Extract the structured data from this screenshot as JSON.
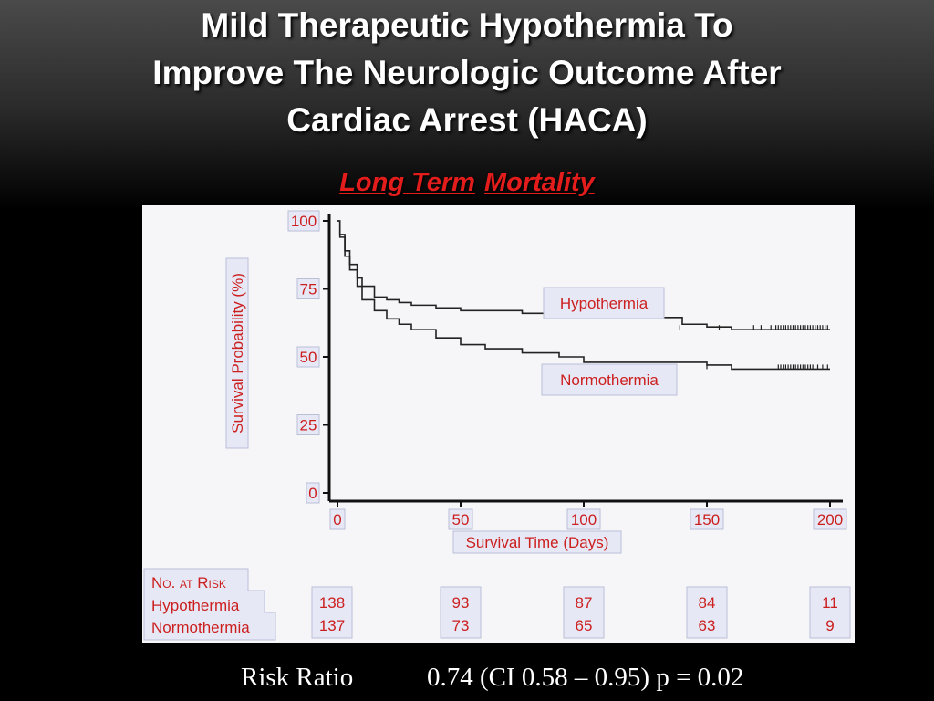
{
  "title_lines": [
    "Mild Therapeutic Hypothermia To",
    "Improve The Neurologic Outcome After",
    "Cardiac Arrest (HACA)"
  ],
  "subtitle_parts": [
    "Long Term",
    "Mortality"
  ],
  "colors": {
    "title": "#ffffff",
    "subtitle": "#e31c1c",
    "label_text": "#cc1f1f",
    "label_box_fill": "#e6e9f5",
    "curve": "#222222"
  },
  "chart_data": {
    "type": "line",
    "title": "",
    "xlabel": "Survival Time (Days)",
    "ylabel": "Survival Probability (%)",
    "xlim": [
      0,
      200
    ],
    "ylim": [
      0,
      100
    ],
    "x_ticks": [
      "0",
      "50",
      "100",
      "150",
      "200"
    ],
    "y_ticks": [
      "0",
      "25",
      "50",
      "75",
      "100"
    ],
    "series": [
      {
        "name": "Hypothermia",
        "x": [
          0,
          1,
          3,
          5,
          8,
          10,
          15,
          20,
          25,
          30,
          40,
          50,
          60,
          75,
          100,
          125,
          140,
          150,
          160,
          180,
          200
        ],
        "y": [
          100,
          95,
          89,
          84,
          79,
          76,
          72,
          71,
          70,
          69,
          68,
          67,
          67,
          66,
          64.5,
          64.5,
          62,
          61,
          60,
          60,
          60
        ],
        "censor_x": [
          139,
          155,
          169,
          172,
          176,
          178,
          179,
          180,
          181,
          182,
          183,
          184,
          185,
          186,
          187,
          188,
          189,
          190,
          191,
          192,
          193,
          194,
          195,
          196,
          197,
          198,
          199
        ],
        "censor_y": 60
      },
      {
        "name": "Normothermia",
        "x": [
          0,
          1,
          3,
          5,
          8,
          10,
          15,
          20,
          25,
          30,
          40,
          50,
          60,
          75,
          90,
          100,
          125,
          150,
          160,
          180,
          200
        ],
        "y": [
          100,
          94,
          87,
          82,
          76,
          71,
          67,
          64,
          62,
          60,
          57,
          54.5,
          53,
          51.5,
          50,
          48,
          48,
          47,
          45.5,
          45.5,
          45.5
        ],
        "censor_x": [
          150,
          179,
          180,
          181,
          182,
          183,
          184,
          185,
          186,
          187,
          188,
          189,
          190,
          191,
          192,
          193,
          195,
          197,
          199
        ],
        "censor_y": 45.5
      }
    ],
    "annotations": [
      "Hypothermia",
      "Normothermia"
    ],
    "risk_table": {
      "header": "No. at Risk",
      "rows": [
        "Hypothermia",
        "Normothermia"
      ],
      "columns": [
        {
          "day": 0,
          "hypothermia": "138",
          "normothermia": "137"
        },
        {
          "day": 50,
          "hypothermia": "93",
          "normothermia": "73"
        },
        {
          "day": 100,
          "hypothermia": "87",
          "normothermia": "65"
        },
        {
          "day": 150,
          "hypothermia": "84",
          "normothermia": "63"
        },
        {
          "day": 200,
          "hypothermia": "11",
          "normothermia": "9"
        }
      ]
    }
  },
  "footer": {
    "risk_ratio_label": "Risk Ratio",
    "risk_ratio_value": "0.74 (CI 0.58 – 0.95) p = 0.02"
  }
}
